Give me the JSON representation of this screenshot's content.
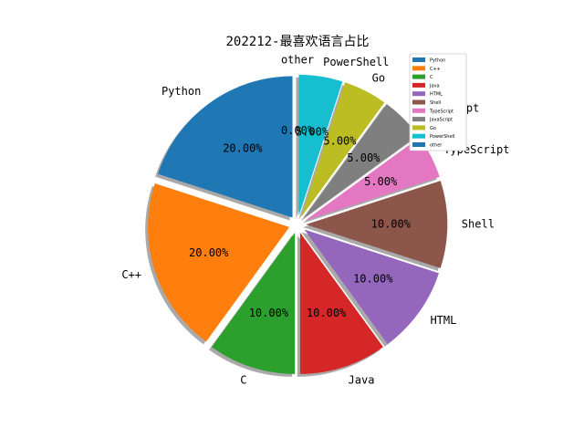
{
  "chart_data": {
    "type": "pie",
    "title": "202212-最喜欢语言占比",
    "categories": [
      "Python",
      "C++",
      "C",
      "Java",
      "HTML",
      "Shell",
      "TypeScript",
      "JavaScript",
      "Go",
      "PowerShell",
      "other"
    ],
    "values": [
      20,
      20,
      10,
      10,
      10,
      10,
      5,
      5,
      5,
      5,
      0
    ],
    "percent_labels": [
      "20.00%",
      "20.00%",
      "10.00%",
      "10.00%",
      "10.00%",
      "10.00%",
      "5.00%",
      "5.00%",
      "5.00%",
      "5.00%",
      "0.00%"
    ],
    "colors": [
      "#1f77b4",
      "#ff7f0e",
      "#2ca02c",
      "#d62728",
      "#9467bd",
      "#8c564b",
      "#e377c2",
      "#7f7f7f",
      "#bcbd22",
      "#17becf",
      "#1f77b4"
    ],
    "start_angle_deg": 90,
    "direction": "counterclockwise",
    "exploded": true,
    "shadow": true,
    "legend": {
      "placement": "upper-right",
      "entries": [
        "Python",
        "C++",
        "C",
        "Java",
        "HTML",
        "Shell",
        "TypeScript",
        "JavaScript",
        "Go",
        "PowerShell",
        "other"
      ]
    }
  }
}
